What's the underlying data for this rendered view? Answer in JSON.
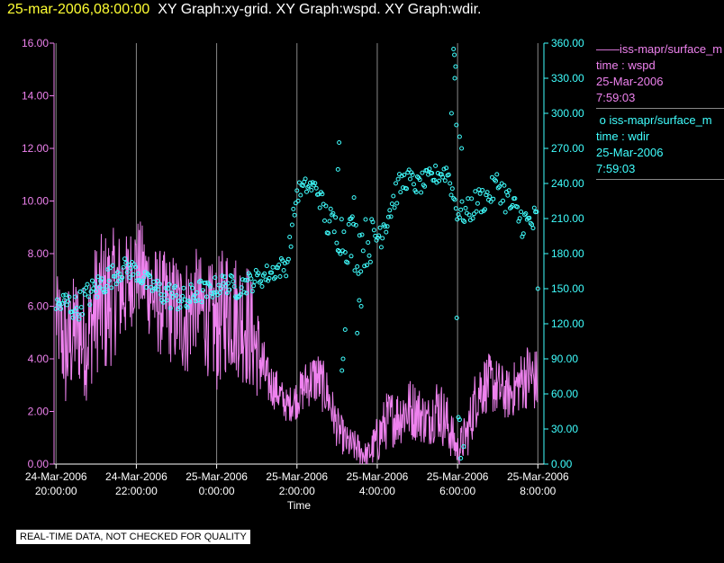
{
  "header": {
    "time": "25-mar-2006,08:00:00",
    "graphs": "XY Graph:xy-grid.  XY Graph:wspd.  XY Graph:wdir."
  },
  "colors": {
    "wspd": "#ee82ee",
    "wdir": "#40ffff",
    "grid": "#888888",
    "title_time": "#ffff33"
  },
  "legend": {
    "wspd": {
      "marker": "——",
      "series": "iss-mapr/surface_m",
      "var": "time : wspd",
      "date": "25-Mar-2006",
      "time": "7:59:03"
    },
    "wdir": {
      "marker": "o",
      "series": "iss-mapr/surface_m",
      "var": "time : wdir",
      "date": "25-Mar-2006",
      "time": "7:59:03"
    }
  },
  "footer": {
    "quality_note": "REAL-TIME DATA, NOT CHECKED FOR QUALITY"
  },
  "chart_data": {
    "type": "line",
    "xlabel": "Time",
    "xlim": [
      20.0,
      8.15
    ],
    "x_hours_range": [
      19.95,
      32.15
    ],
    "x_ticks": [
      {
        "hour": 20,
        "line1": "24-Mar-2006",
        "line2": "20:00:00"
      },
      {
        "hour": 22,
        "line1": "24-Mar-2006",
        "line2": "22:00:00"
      },
      {
        "hour": 24,
        "line1": "25-Mar-2006",
        "line2": "0:00:00"
      },
      {
        "hour": 26,
        "line1": "25-Mar-2006",
        "line2": "2:00:00"
      },
      {
        "hour": 28,
        "line1": "25-Mar-2006",
        "line2": "4:00:00"
      },
      {
        "hour": 30,
        "line1": "25-Mar-2006",
        "line2": "6:00:00"
      },
      {
        "hour": 32,
        "line1": "25-Mar-2006",
        "line2": "8:00:00"
      }
    ],
    "y_left": {
      "label": "wspd",
      "lim": [
        0,
        16
      ],
      "ticks": [
        "0.00",
        "2.00",
        "4.00",
        "6.00",
        "8.00",
        "10.00",
        "12.00",
        "14.00",
        "16.00"
      ]
    },
    "y_right": {
      "label": "wdir",
      "lim": [
        0,
        360
      ],
      "ticks": [
        "0.00",
        "30.00",
        "60.00",
        "90.00",
        "120.00",
        "150.00",
        "180.00",
        "210.00",
        "240.00",
        "270.00",
        "300.00",
        "330.00",
        "360.00"
      ]
    },
    "series": [
      {
        "name": "wspd",
        "axis": "left",
        "style": "line",
        "x": [
          20.0,
          20.25,
          20.5,
          20.75,
          21.0,
          21.25,
          21.5,
          21.75,
          22.0,
          22.25,
          22.5,
          22.75,
          23.0,
          23.25,
          23.5,
          23.75,
          24.0,
          24.25,
          24.5,
          24.75,
          25.0,
          25.25,
          25.5,
          25.75,
          26.0,
          26.25,
          26.5,
          26.75,
          27.0,
          27.25,
          27.5,
          27.75,
          28.0,
          28.25,
          28.5,
          28.75,
          29.0,
          29.25,
          29.5,
          29.75,
          30.0,
          30.25,
          30.5,
          30.75,
          31.0,
          31.25,
          31.5,
          31.75,
          32.0
        ],
        "values": [
          5.6,
          4.3,
          5.2,
          4.6,
          6.0,
          6.1,
          6.6,
          6.7,
          7.6,
          7.0,
          6.2,
          6.0,
          5.8,
          5.6,
          6.3,
          5.5,
          5.2,
          6.0,
          5.7,
          5.4,
          4.4,
          3.2,
          2.8,
          2.2,
          2.5,
          3.1,
          3.3,
          2.7,
          1.4,
          0.8,
          0.6,
          0.3,
          0.9,
          1.7,
          1.8,
          2.1,
          2.0,
          1.6,
          2.2,
          1.5,
          0.5,
          1.2,
          2.8,
          3.1,
          2.9,
          2.6,
          3.0,
          3.4,
          3.1
        ],
        "spread": [
          1.0,
          1.6,
          1.3,
          1.4,
          1.6,
          1.8,
          1.5,
          1.3,
          1.2,
          1.2,
          1.3,
          1.3,
          1.4,
          1.5,
          1.2,
          1.3,
          1.6,
          1.6,
          1.5,
          1.6,
          1.2,
          0.6,
          0.5,
          0.4,
          0.5,
          0.6,
          0.7,
          0.6,
          0.5,
          0.4,
          0.4,
          0.3,
          0.6,
          0.7,
          0.7,
          0.8,
          0.7,
          0.6,
          0.8,
          0.7,
          0.4,
          0.6,
          0.8,
          0.7,
          0.7,
          0.6,
          0.7,
          0.8,
          0.8
        ]
      },
      {
        "name": "wdir",
        "axis": "right",
        "style": "scatter",
        "x": [
          20.0,
          20.25,
          20.5,
          20.75,
          21.0,
          21.25,
          21.5,
          21.75,
          22.0,
          22.25,
          22.5,
          22.75,
          23.0,
          23.25,
          23.5,
          23.75,
          24.0,
          24.25,
          24.5,
          24.75,
          25.0,
          25.25,
          25.5,
          25.75,
          26.0,
          26.25,
          26.5,
          26.75,
          27.0,
          27.25,
          27.5,
          27.75,
          28.0,
          28.25,
          28.5,
          28.75,
          29.0,
          29.25,
          29.5,
          29.75,
          30.0,
          30.25,
          30.5,
          30.75,
          31.0,
          31.25,
          31.5,
          31.75,
          32.0
        ],
        "values": [
          135,
          138,
          133,
          143,
          150,
          158,
          163,
          168,
          165,
          155,
          150,
          145,
          143,
          138,
          148,
          147,
          152,
          155,
          150,
          155,
          158,
          162,
          167,
          170,
          232,
          238,
          236,
          208,
          200,
          195,
          188,
          190,
          195,
          212,
          235,
          245,
          238,
          243,
          248,
          250,
          215,
          215,
          225,
          228,
          240,
          225,
          212,
          205,
          208
        ],
        "spread": [
          6,
          8,
          8,
          8,
          8,
          8,
          6,
          6,
          6,
          6,
          6,
          8,
          8,
          8,
          8,
          6,
          6,
          6,
          6,
          6,
          6,
          6,
          6,
          6,
          6,
          5,
          5,
          10,
          12,
          16,
          18,
          14,
          12,
          10,
          8,
          6,
          6,
          6,
          6,
          6,
          6,
          8,
          8,
          8,
          8,
          10,
          10,
          10,
          10
        ],
        "outliers": [
          {
            "x": 27.05,
            "y": 275
          },
          {
            "x": 27.02,
            "y": 252
          },
          {
            "x": 27.42,
            "y": 228
          },
          {
            "x": 27.35,
            "y": 210
          },
          {
            "x": 27.15,
            "y": 90
          },
          {
            "x": 27.12,
            "y": 80
          },
          {
            "x": 27.2,
            "y": 115
          },
          {
            "x": 27.5,
            "y": 112
          },
          {
            "x": 27.55,
            "y": 140
          },
          {
            "x": 27.6,
            "y": 135
          },
          {
            "x": 29.9,
            "y": 355
          },
          {
            "x": 29.92,
            "y": 350
          },
          {
            "x": 29.95,
            "y": 340
          },
          {
            "x": 29.93,
            "y": 330
          },
          {
            "x": 29.85,
            "y": 300
          },
          {
            "x": 29.97,
            "y": 290
          },
          {
            "x": 30.05,
            "y": 280
          },
          {
            "x": 30.1,
            "y": 270
          },
          {
            "x": 29.98,
            "y": 125
          },
          {
            "x": 30.02,
            "y": 40
          },
          {
            "x": 30.05,
            "y": 38
          },
          {
            "x": 30.08,
            "y": 5
          },
          {
            "x": 30.15,
            "y": 15
          },
          {
            "x": 32.0,
            "y": 150
          }
        ]
      }
    ]
  }
}
